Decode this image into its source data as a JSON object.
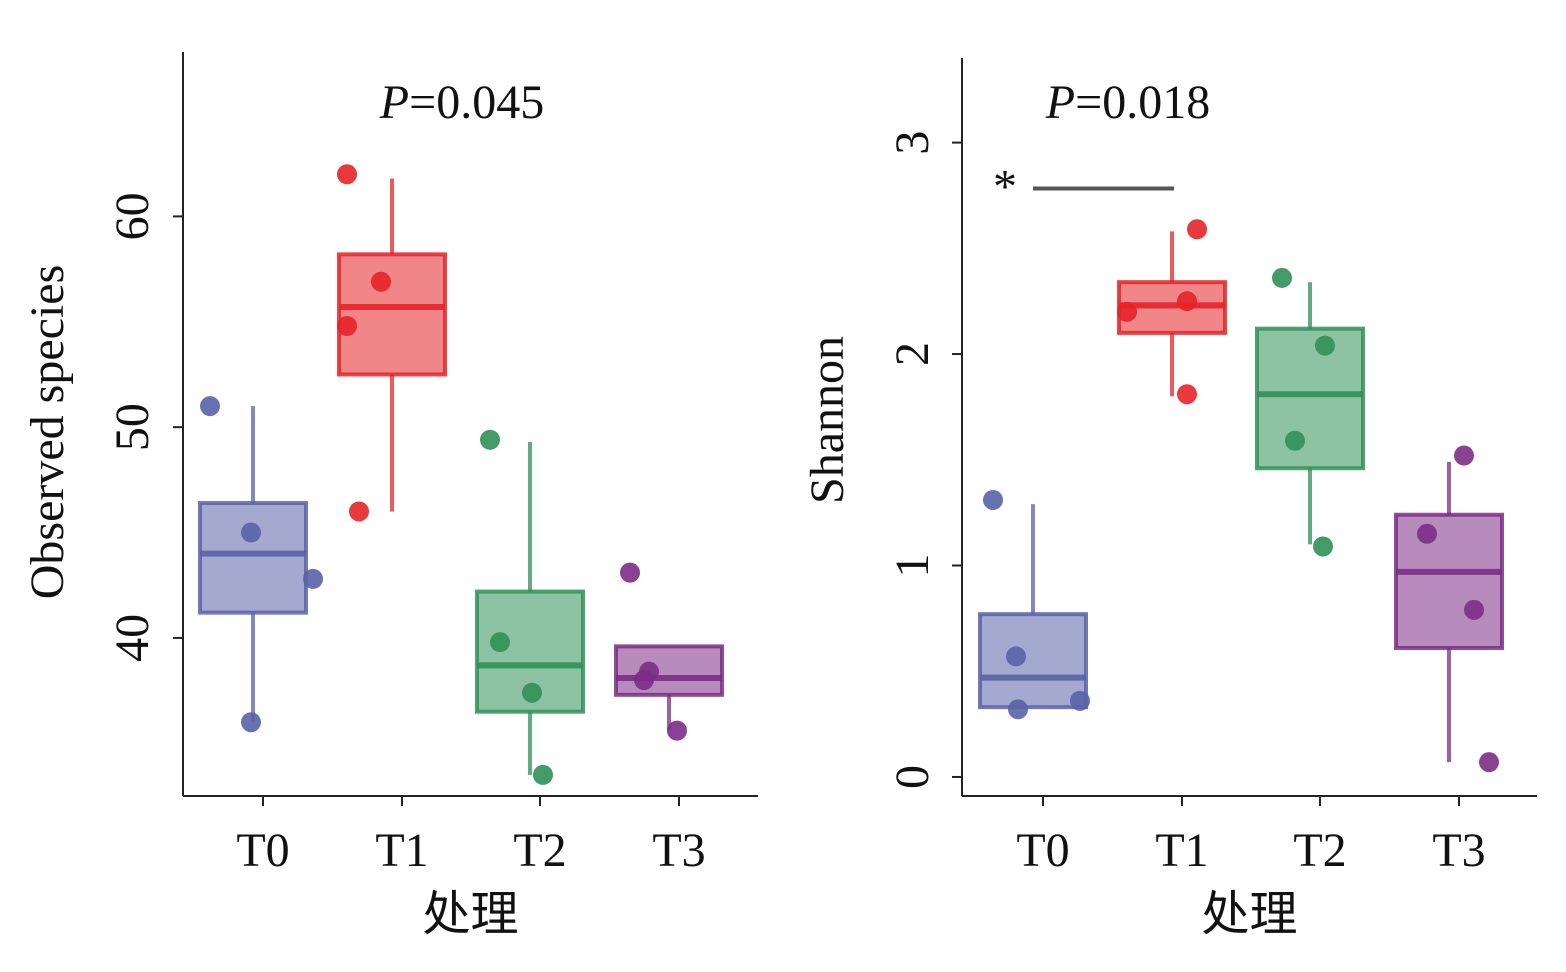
{
  "chart_data": [
    {
      "type": "box",
      "xlabel": "处理",
      "ylabel": "Observed species",
      "annotation": {
        "prefix": "P",
        "value": "=0.045"
      },
      "categories": [
        "T0",
        "T1",
        "T2",
        "T3"
      ],
      "ylim": [
        32.5,
        67.8
      ],
      "yticks": [
        40,
        50,
        60
      ],
      "colors": [
        "#5a62a8",
        "#e52328",
        "#2f9157",
        "#7b2d85"
      ],
      "boxes": [
        {
          "category": "T0",
          "min": 36,
          "q1": 41.2,
          "median": 44,
          "q3": 46.4,
          "max": 51,
          "points": [
            51,
            45,
            42.8,
            36
          ]
        },
        {
          "category": "T1",
          "min": 46,
          "q1": 52.5,
          "median": 55.7,
          "q3": 58.2,
          "max": 61.8,
          "points": [
            62,
            56.9,
            54.8,
            46
          ]
        },
        {
          "category": "T2",
          "min": 33.5,
          "q1": 36.5,
          "median": 38.7,
          "q3": 42.2,
          "max": 49.3,
          "points": [
            49.4,
            39.8,
            37.4,
            33.5
          ]
        },
        {
          "category": "T3",
          "min": 35.6,
          "q1": 37.3,
          "median": 38.1,
          "q3": 39.6,
          "max": 39.6,
          "points": [
            43.1,
            38.4,
            38,
            35.6
          ]
        }
      ]
    },
    {
      "type": "box",
      "xlabel": "处理",
      "ylabel": "Shannon",
      "annotation": {
        "prefix": "P",
        "value": "=0.018"
      },
      "significance": {
        "label": "*",
        "from": "T0",
        "to": "T1",
        "y": 2.83
      },
      "categories": [
        "T0",
        "T1",
        "T2",
        "T3"
      ],
      "ylim": [
        -0.09,
        3.4
      ],
      "yticks": [
        0,
        1,
        2,
        3
      ],
      "colors": [
        "#5a62a8",
        "#e52328",
        "#2f9157",
        "#7b2d85"
      ],
      "boxes": [
        {
          "category": "T0",
          "min": 0.33,
          "q1": 0.33,
          "median": 0.47,
          "q3": 0.77,
          "max": 1.29,
          "points": [
            1.31,
            0.57,
            0.32,
            0.36
          ]
        },
        {
          "category": "T1",
          "min": 1.8,
          "q1": 2.1,
          "median": 2.23,
          "q3": 2.34,
          "max": 2.58,
          "points": [
            2.59,
            2.25,
            2.2,
            1.81
          ]
        },
        {
          "category": "T2",
          "min": 1.1,
          "q1": 1.46,
          "median": 1.81,
          "q3": 2.12,
          "max": 2.34,
          "points": [
            2.36,
            2.04,
            1.59,
            1.09
          ]
        },
        {
          "category": "T3",
          "min": 0.07,
          "q1": 0.61,
          "median": 0.97,
          "q3": 1.24,
          "max": 1.49,
          "points": [
            1.52,
            1.15,
            0.79,
            0.07
          ]
        }
      ]
    }
  ]
}
